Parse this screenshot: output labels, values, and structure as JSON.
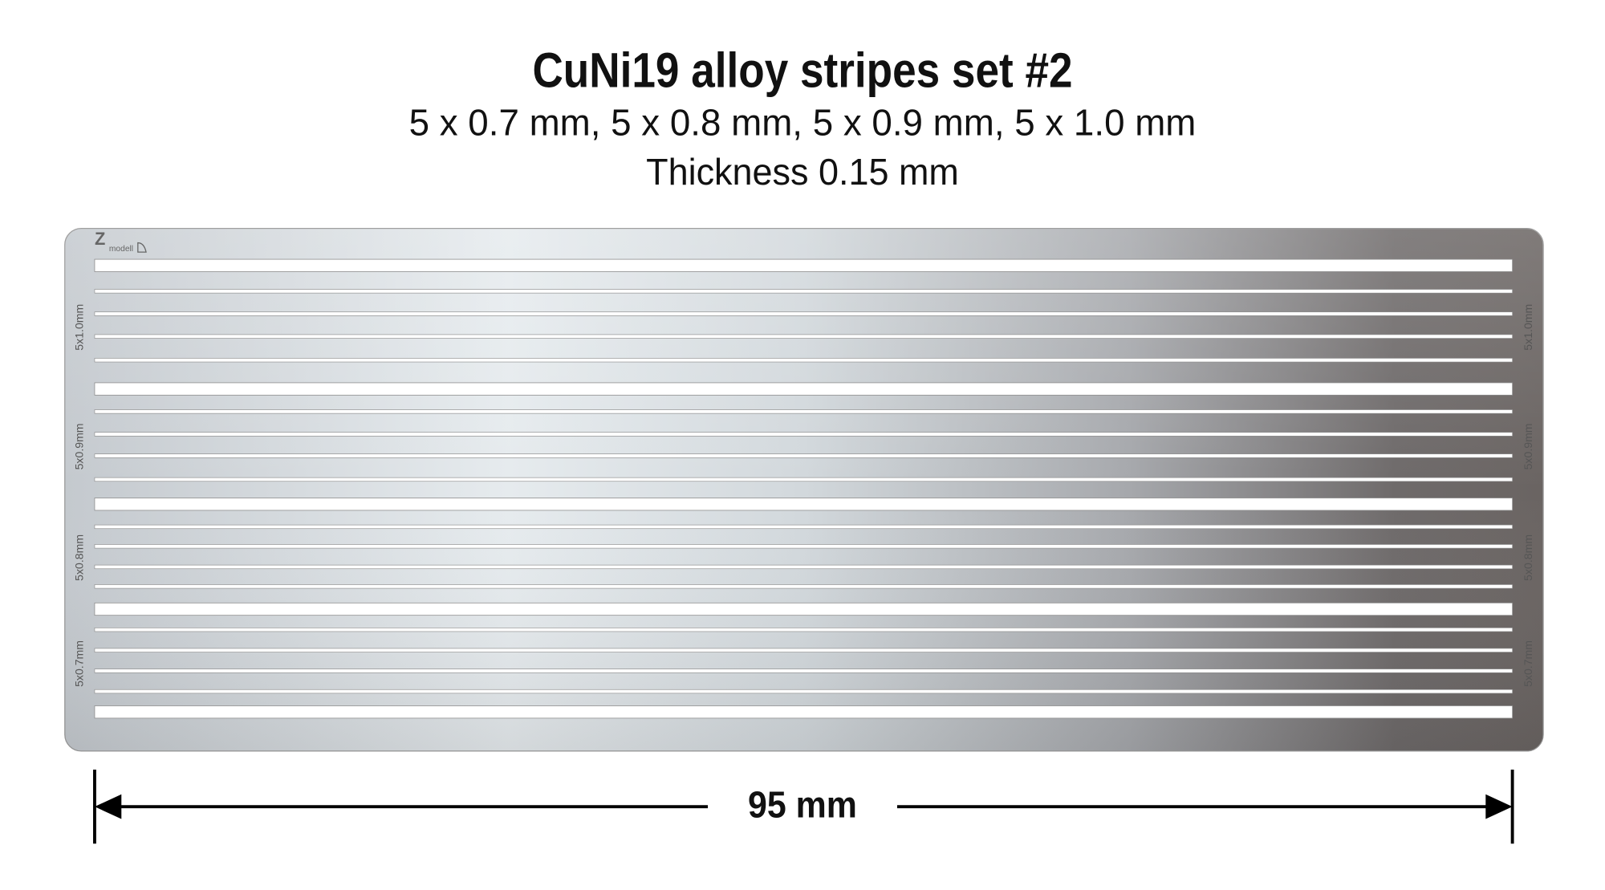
{
  "header": {
    "title": "CuNi19 alloy stripes set #2",
    "subtitle": "5 x 0.7 mm, 5 x 0.8 mm, 5 x 0.9 mm, 5 x 1.0 mm",
    "thickness": "Thickness 0.15 mm"
  },
  "plate": {
    "logo": [
      "Z",
      "modell"
    ],
    "stripe_labels": [
      "5x1.0mm",
      "5x0.9mm",
      "5x0.8mm",
      "5x0.7mm"
    ]
  },
  "dimension": "95 mm"
}
